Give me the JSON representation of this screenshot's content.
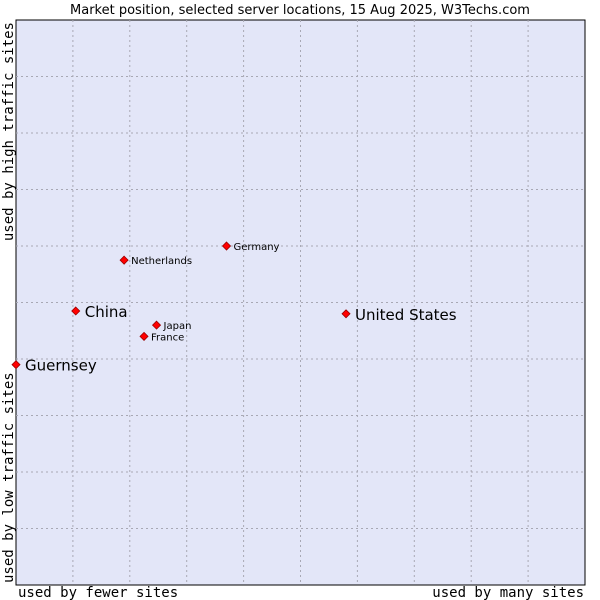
{
  "chart_data": {
    "type": "scatter",
    "title": "Market position, selected server locations, 15 Aug 2025, W3Techs.com",
    "xlabel_left": "used by fewer sites",
    "xlabel_right": "used by many sites",
    "ylabel_bottom": "used by low traffic sites",
    "ylabel_top": "used by high traffic sites",
    "xlim": [
      0,
      10
    ],
    "ylim": [
      0,
      10
    ],
    "grid": true,
    "colors": {
      "plot_bg": "#e3e6f8",
      "grid": "#a8a8b4",
      "point": "#ff0000",
      "point_edge": "#990000"
    },
    "points": [
      {
        "name": "United States",
        "x": 5.8,
        "y": 4.8,
        "size": "large"
      },
      {
        "name": "China",
        "x": 1.05,
        "y": 4.85,
        "size": "large"
      },
      {
        "name": "Guernsey",
        "x": 0.0,
        "y": 3.9,
        "size": "large"
      },
      {
        "name": "Germany",
        "x": 3.7,
        "y": 6.0,
        "size": "small"
      },
      {
        "name": "Netherlands",
        "x": 1.9,
        "y": 5.75,
        "size": "small"
      },
      {
        "name": "Japan",
        "x": 2.47,
        "y": 4.6,
        "size": "small"
      },
      {
        "name": "France",
        "x": 2.25,
        "y": 4.4,
        "size": "small"
      }
    ]
  }
}
